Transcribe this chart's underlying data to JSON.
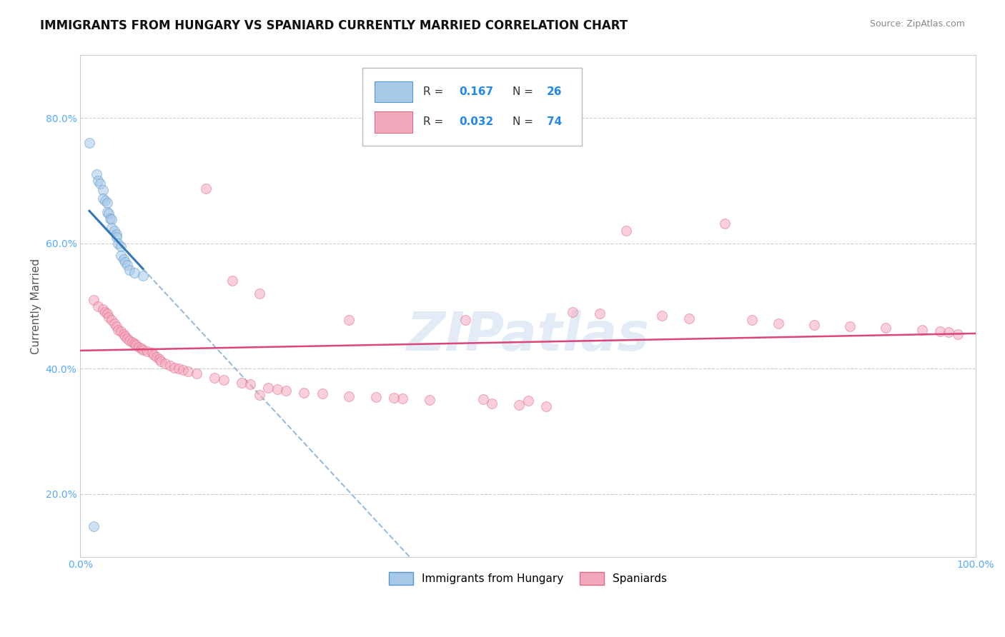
{
  "title": "IMMIGRANTS FROM HUNGARY VS SPANIARD CURRENTLY MARRIED CORRELATION CHART",
  "source": "Source: ZipAtlas.com",
  "ylabel": "Currently Married",
  "xlim": [
    0.0,
    1.0
  ],
  "ylim": [
    0.1,
    0.9
  ],
  "yticks": [
    0.2,
    0.4,
    0.6,
    0.8
  ],
  "yticklabels": [
    "20.0%",
    "40.0%",
    "60.0%",
    "80.0%"
  ],
  "blue_fill": "#a8c8e8",
  "blue_edge": "#5599cc",
  "pink_fill": "#f4a8bc",
  "pink_edge": "#e06888",
  "blue_line_color": "#3377bb",
  "pink_line_color": "#dd4477",
  "dashed_line_color": "#99bbdd",
  "legend_label_blue": "Immigrants from Hungary",
  "legend_label_pink": "Spaniards",
  "background_color": "#ffffff",
  "grid_color": "#cccccc",
  "tick_color": "#55aaff",
  "title_fontsize": 12,
  "source_fontsize": 9,
  "axis_label_fontsize": 11,
  "tick_fontsize": 10,
  "marker_size": 100,
  "marker_alpha": 0.55,
  "hungary_x": [
    0.01,
    0.018,
    0.02,
    0.022,
    0.025,
    0.025,
    0.028,
    0.03,
    0.03,
    0.032,
    0.033,
    0.035,
    0.035,
    0.038,
    0.04,
    0.04,
    0.042,
    0.045,
    0.045,
    0.048,
    0.05,
    0.052,
    0.055,
    0.06,
    0.07,
    0.015
  ],
  "hungary_y": [
    0.76,
    0.71,
    0.7,
    0.695,
    0.685,
    0.672,
    0.668,
    0.665,
    0.65,
    0.648,
    0.64,
    0.638,
    0.625,
    0.62,
    0.615,
    0.61,
    0.6,
    0.595,
    0.58,
    0.575,
    0.57,
    0.565,
    0.558,
    0.553,
    0.548,
    0.148
  ],
  "spaniard_x": [
    0.015,
    0.02,
    0.025,
    0.028,
    0.03,
    0.032,
    0.035,
    0.038,
    0.04,
    0.042,
    0.045,
    0.048,
    0.05,
    0.052,
    0.055,
    0.058,
    0.06,
    0.062,
    0.065,
    0.068,
    0.07,
    0.075,
    0.08,
    0.082,
    0.085,
    0.088,
    0.09,
    0.095,
    0.1,
    0.105,
    0.11,
    0.115,
    0.12,
    0.13,
    0.14,
    0.15,
    0.16,
    0.17,
    0.18,
    0.19,
    0.2,
    0.21,
    0.22,
    0.23,
    0.25,
    0.27,
    0.3,
    0.33,
    0.36,
    0.39,
    0.43,
    0.46,
    0.49,
    0.52,
    0.55,
    0.58,
    0.61,
    0.65,
    0.68,
    0.72,
    0.75,
    0.78,
    0.82,
    0.86,
    0.9,
    0.94,
    0.96,
    0.97,
    0.98,
    0.2,
    0.3,
    0.35,
    0.45,
    0.5
  ],
  "spaniard_y": [
    0.51,
    0.5,
    0.495,
    0.49,
    0.488,
    0.482,
    0.478,
    0.472,
    0.468,
    0.462,
    0.46,
    0.455,
    0.452,
    0.448,
    0.445,
    0.442,
    0.44,
    0.438,
    0.435,
    0.432,
    0.43,
    0.428,
    0.425,
    0.422,
    0.418,
    0.415,
    0.412,
    0.408,
    0.405,
    0.402,
    0.4,
    0.398,
    0.396,
    0.392,
    0.688,
    0.385,
    0.382,
    0.54,
    0.378,
    0.375,
    0.52,
    0.37,
    0.367,
    0.365,
    0.362,
    0.36,
    0.478,
    0.355,
    0.352,
    0.35,
    0.478,
    0.345,
    0.342,
    0.34,
    0.49,
    0.488,
    0.62,
    0.485,
    0.48,
    0.632,
    0.478,
    0.472,
    0.47,
    0.468,
    0.465,
    0.462,
    0.46,
    0.458,
    0.455,
    0.358,
    0.356,
    0.354,
    0.351,
    0.349
  ]
}
